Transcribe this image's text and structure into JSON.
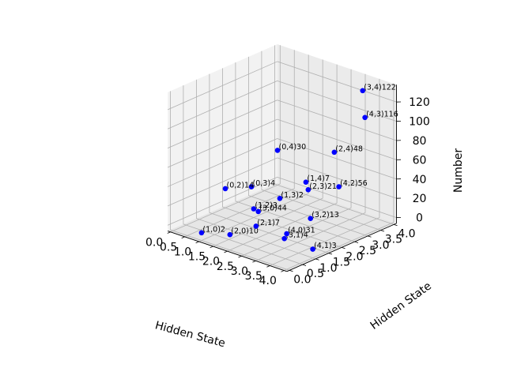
{
  "chart_data": {
    "type": "scatter3d",
    "title": "",
    "xlabel": "Hidden State",
    "ylabel": "Hidden State",
    "zlabel": "Number",
    "xlim": [
      0,
      4
    ],
    "ylim": [
      0,
      4
    ],
    "zlim": [
      0,
      130
    ],
    "x_ticks": [
      "0.0",
      "0.5",
      "1.0",
      "1.5",
      "2.0",
      "2.5",
      "3.0",
      "3.5",
      "4.0"
    ],
    "y_ticks": [
      "0.0",
      "0.5",
      "1.0",
      "1.5",
      "2.0",
      "2.5",
      "3.0",
      "3.5",
      "4.0"
    ],
    "z_ticks": [
      "0",
      "20",
      "40",
      "60",
      "80",
      "100",
      "120"
    ],
    "grid": true,
    "marker_color": "#0000ff",
    "points": [
      {
        "x": 0,
        "y": 3,
        "z": 4,
        "label": "(0,3)4"
      },
      {
        "x": 0,
        "y": 4,
        "z": 30,
        "label": "(0,4)30"
      },
      {
        "x": 0,
        "y": 2,
        "z": 14,
        "label": "(0,2)14"
      },
      {
        "x": 1,
        "y": 0,
        "z": 2,
        "label": "(1,0)2"
      },
      {
        "x": 1,
        "y": 2,
        "z": 3,
        "label": "(1,2)3"
      },
      {
        "x": 1,
        "y": 3,
        "z": 2,
        "label": "(1,3)2"
      },
      {
        "x": 1,
        "y": 4,
        "z": 7,
        "label": "(1,4)7"
      },
      {
        "x": 2,
        "y": 0,
        "z": 10,
        "label": "(2,0)10"
      },
      {
        "x": 2,
        "y": 1,
        "z": 7,
        "label": "(2,1)7"
      },
      {
        "x": 2,
        "y": 3,
        "z": 21,
        "label": "(2,3)21"
      },
      {
        "x": 2,
        "y": 4,
        "z": 48,
        "label": "(2,4)48"
      },
      {
        "x": 3,
        "y": 0,
        "z": 44,
        "label": "(3,0)44"
      },
      {
        "x": 3,
        "y": 1,
        "z": 4,
        "label": "(3,1)4"
      },
      {
        "x": 3,
        "y": 2,
        "z": 13,
        "label": "(3,2)13"
      },
      {
        "x": 3,
        "y": 4,
        "z": 122,
        "label": "(3,4)122"
      },
      {
        "x": 4,
        "y": 0,
        "z": 31,
        "label": "(4,0)31"
      },
      {
        "x": 4,
        "y": 1,
        "z": 3,
        "label": "(4,1)3"
      },
      {
        "x": 4,
        "y": 2,
        "z": 56,
        "label": "(4,2)56"
      },
      {
        "x": 4,
        "y": 3,
        "z": 116,
        "label": "(4,3)116"
      }
    ]
  }
}
